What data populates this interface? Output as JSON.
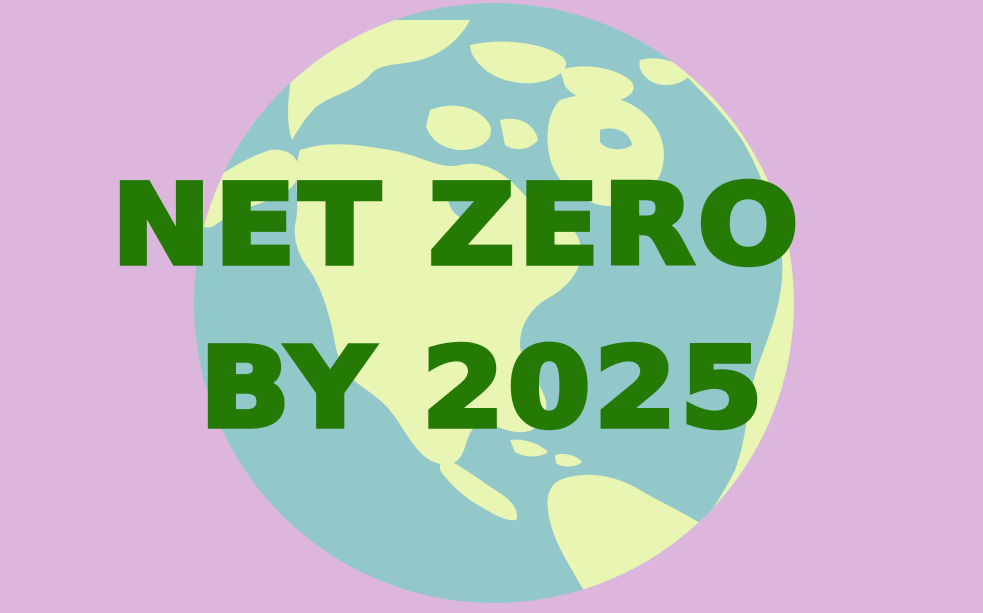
{
  "headline": {
    "line1": "NET ZERO",
    "line2": "BY 2025"
  },
  "illustration": {
    "icon": "earth-globe-icon",
    "ocean_color": "#92c8ca",
    "land_color": "#e8f5b3"
  },
  "colors": {
    "background": "#dcb6dd",
    "text": "#257a06"
  }
}
